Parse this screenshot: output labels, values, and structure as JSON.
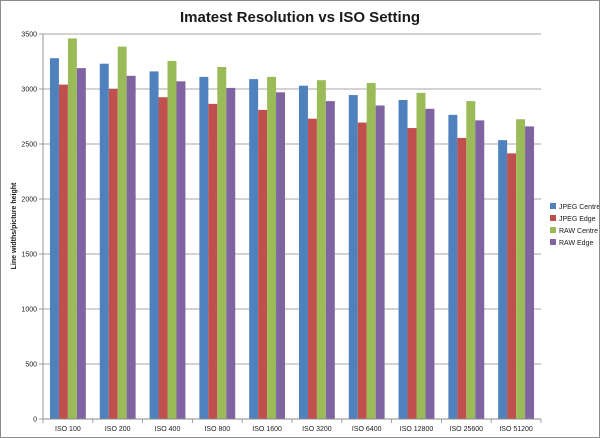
{
  "chart_data": {
    "type": "bar",
    "title": "Imatest Resolution vs ISO Setting",
    "xlabel": "",
    "ylabel": "Line widths/picture height",
    "ylim": [
      0,
      3500
    ],
    "yticks": [
      0,
      500,
      1000,
      1500,
      2000,
      2500,
      3000,
      3500
    ],
    "grid": true,
    "legend_position": "right",
    "categories": [
      "ISO 100",
      "ISO 200",
      "ISO 400",
      "ISO 800",
      "ISO 1600",
      "ISO 3200",
      "ISO 6400",
      "ISO 12800",
      "ISO 25600",
      "ISO 51200"
    ],
    "series": [
      {
        "name": "JPEG Centre",
        "color": "#4f81bd",
        "values": [
          3280,
          3230,
          3160,
          3110,
          3090,
          3030,
          2945,
          2900,
          2765,
          2535
        ]
      },
      {
        "name": "JPEG Edge",
        "color": "#c0504d",
        "values": [
          3040,
          3000,
          2925,
          2865,
          2810,
          2730,
          2695,
          2645,
          2555,
          2415
        ]
      },
      {
        "name": "RAW Centre",
        "color": "#9bbb59",
        "values": [
          3460,
          3385,
          3255,
          3200,
          3110,
          3080,
          3055,
          2965,
          2890,
          2725
        ]
      },
      {
        "name": "RAW Edge",
        "color": "#8064a2",
        "values": [
          3190,
          3120,
          3070,
          3010,
          2970,
          2890,
          2850,
          2820,
          2715,
          2660
        ]
      }
    ]
  }
}
